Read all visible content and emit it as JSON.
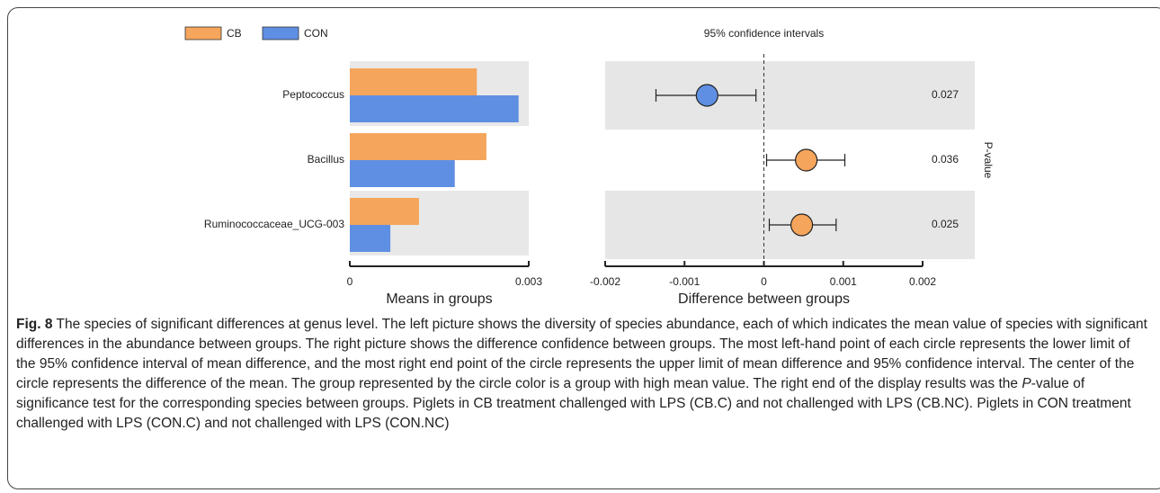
{
  "chart_data": [
    {
      "type": "hbar",
      "xlabel": "Means in groups",
      "categories": [
        "Peptococcus",
        "Bacillus",
        "Ruminococcaceae_UCG-003"
      ],
      "series": [
        {
          "name": "CB",
          "color": "#f5a55c",
          "values": [
            0.00213,
            0.00229,
            0.00116
          ]
        },
        {
          "name": "CON",
          "color": "#5f8fe3",
          "values": [
            0.00283,
            0.00176,
            0.00068
          ]
        }
      ],
      "xlim": [
        0,
        0.003
      ],
      "xticks": [
        0,
        0.003
      ]
    },
    {
      "type": "ci",
      "title": "95% confidence intervals",
      "xlabel": "Difference between groups",
      "categories": [
        "Peptococcus",
        "Bacillus",
        "Ruminococcaceae_UCG-003"
      ],
      "values": [
        -0.000716,
        0.000534,
        0.000477
      ],
      "lower": [
        -0.00136,
        3.4e-05,
        6.8e-05
      ],
      "upper": [
        -0.0001,
        0.00102,
        0.00091
      ],
      "colors": [
        "#5f8fe3",
        "#f5a55c",
        "#f5a55c"
      ],
      "p_values": [
        0.027,
        0.036,
        0.025
      ],
      "p_label": "P-value",
      "xlim": [
        -0.002,
        0.002
      ],
      "xticks": [
        -0.002,
        -0.001,
        0,
        0.001,
        0.002
      ]
    }
  ],
  "caption": {
    "label": "Fig. 8",
    "text_1": "The species of significant differences at genus level. The left picture shows the diversity of species abundance, each of which indicates the mean value of species with significant differences in the abundance between groups. The right picture shows the difference confidence between groups. The most left-hand point of each circle represents the lower limit of the 95% confidence interval of mean difference, and the most right end point of the circle represents the upper limit of mean difference and 95% confidence interval. The center of the circle represents the difference of the mean. The group represented by the circle color is a group with high mean value. The right end of the display results was the ",
    "italic": "P",
    "text_2": "-value of significance test for the corresponding species between groups. Piglets in CB treatment challenged with LPS (CB.C) and not challenged with LPS (CB.NC). Piglets in CON treatment challenged with LPS (CON.C) and not challenged with LPS (CON.NC)"
  }
}
